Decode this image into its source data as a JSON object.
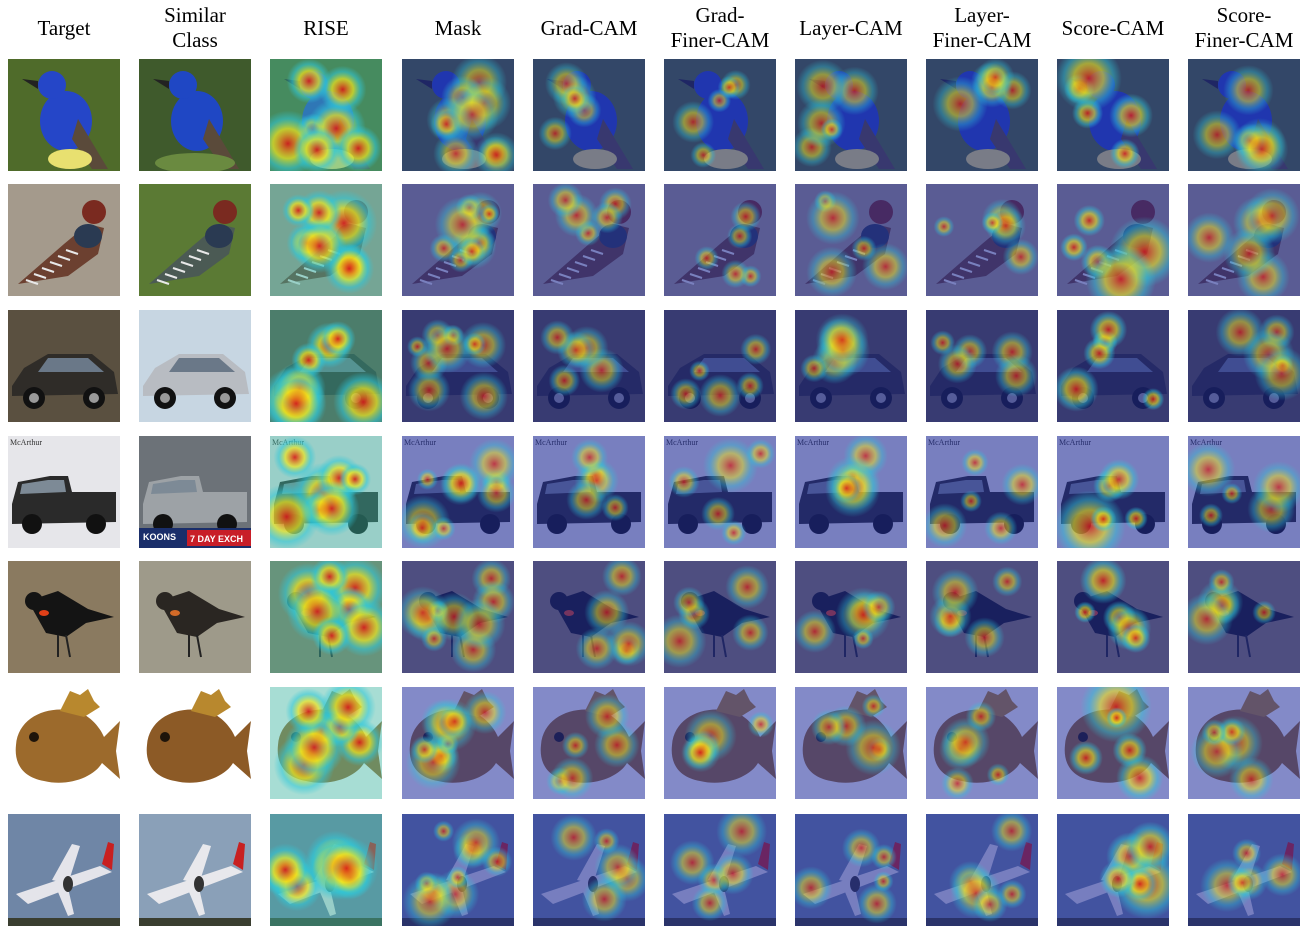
{
  "figure": {
    "columns": [
      {
        "key": "target",
        "label": "Target"
      },
      {
        "key": "similar",
        "label": "Similar\nClass"
      },
      {
        "key": "rise",
        "label": "RISE"
      },
      {
        "key": "mask",
        "label": "Mask"
      },
      {
        "key": "gradcam",
        "label": "Grad-CAM"
      },
      {
        "key": "gradfiner",
        "label": "Grad-\nFiner-CAM"
      },
      {
        "key": "layercam",
        "label": "Layer-CAM"
      },
      {
        "key": "layerfiner",
        "label": "Layer-\nFiner-CAM"
      },
      {
        "key": "scorecam",
        "label": "Score-CAM"
      },
      {
        "key": "scorefiner",
        "label": "Score-\nFiner-CAM"
      }
    ],
    "rows": [
      {
        "subject": "blue-bird",
        "target_bg": "#4f6b2a",
        "target_fg": "#2546c8",
        "similar_bg": "#3f5a2c",
        "similar_fg": "#1f47c4"
      },
      {
        "subject": "turkey",
        "target_bg": "#a49a8c",
        "target_fg": "#6c4030",
        "similar_bg": "#5b7a34",
        "similar_fg": "#4b5a54"
      },
      {
        "subject": "car",
        "target_bg": "#5a5040",
        "target_fg": "#2f2c28",
        "similar_bg": "#c7d6e2",
        "similar_fg": "#b8bcc2"
      },
      {
        "subject": "pickup-truck",
        "target_bg": "#e6e6ea",
        "target_fg": "#2a2a2a",
        "similar_bg": "#6c7278",
        "similar_fg": "#9da2a6"
      },
      {
        "subject": "blackbird",
        "target_bg": "#8a7a60",
        "target_fg": "#141414",
        "similar_bg": "#9e9a8a",
        "similar_fg": "#2a2622"
      },
      {
        "subject": "sunfish",
        "target_bg": "#ffffff",
        "target_fg": "#9c6a2c",
        "similar_bg": "#ffffff",
        "similar_fg": "#8c5a26"
      },
      {
        "subject": "airplane",
        "target_bg": "#6f86a6",
        "target_fg": "#e4e4ea",
        "similar_bg": "#8aa0b8",
        "similar_fg": "#e8e8ec"
      }
    ],
    "badge_texts": {
      "mcarthur": "McArthur",
      "koons": "KOONS",
      "exch": "7 DAY EXCH"
    },
    "colors": {
      "overlay_blue": "#1e2a9a",
      "heat_red": "#d81818",
      "heat_yellow": "#f2e61c",
      "heat_cyan": "#30c8d8"
    }
  }
}
